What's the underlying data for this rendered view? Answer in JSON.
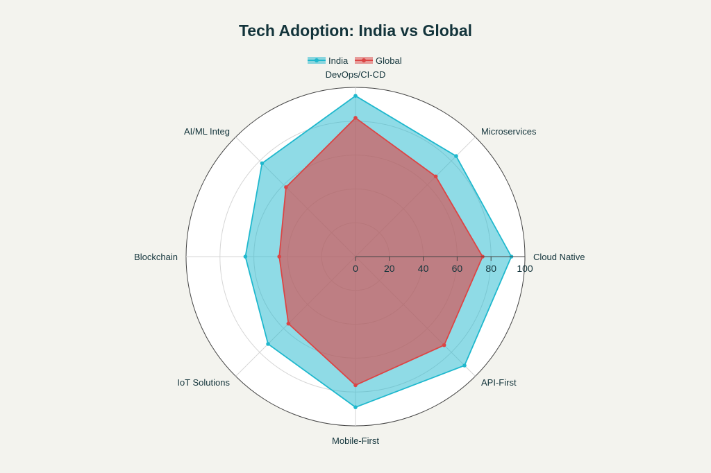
{
  "chart_data": {
    "type": "radar",
    "title": "Tech Adoption: India vs Global",
    "categories": [
      "Cloud Native",
      "Microservices",
      "DevOps/CI-CD",
      "AI/ML Integ",
      "Blockchain",
      "IoT Solutions",
      "Mobile-First",
      "API-First"
    ],
    "series": [
      {
        "name": "India",
        "color": "#1fb8cd",
        "values": [
          92,
          84,
          95,
          78,
          65,
          73,
          89,
          91
        ]
      },
      {
        "name": "Global",
        "color": "#db4545",
        "values": [
          75,
          67,
          82,
          58,
          45,
          56,
          76,
          74
        ]
      }
    ],
    "radial_range": [
      0,
      100
    ],
    "radial_ticks": [
      0,
      20,
      40,
      60,
      80,
      100
    ],
    "grid": true,
    "legend_position": "top-center"
  },
  "colors": {
    "background": "#f3f3ee",
    "plot_background": "#ffffff",
    "text": "#13343b"
  }
}
